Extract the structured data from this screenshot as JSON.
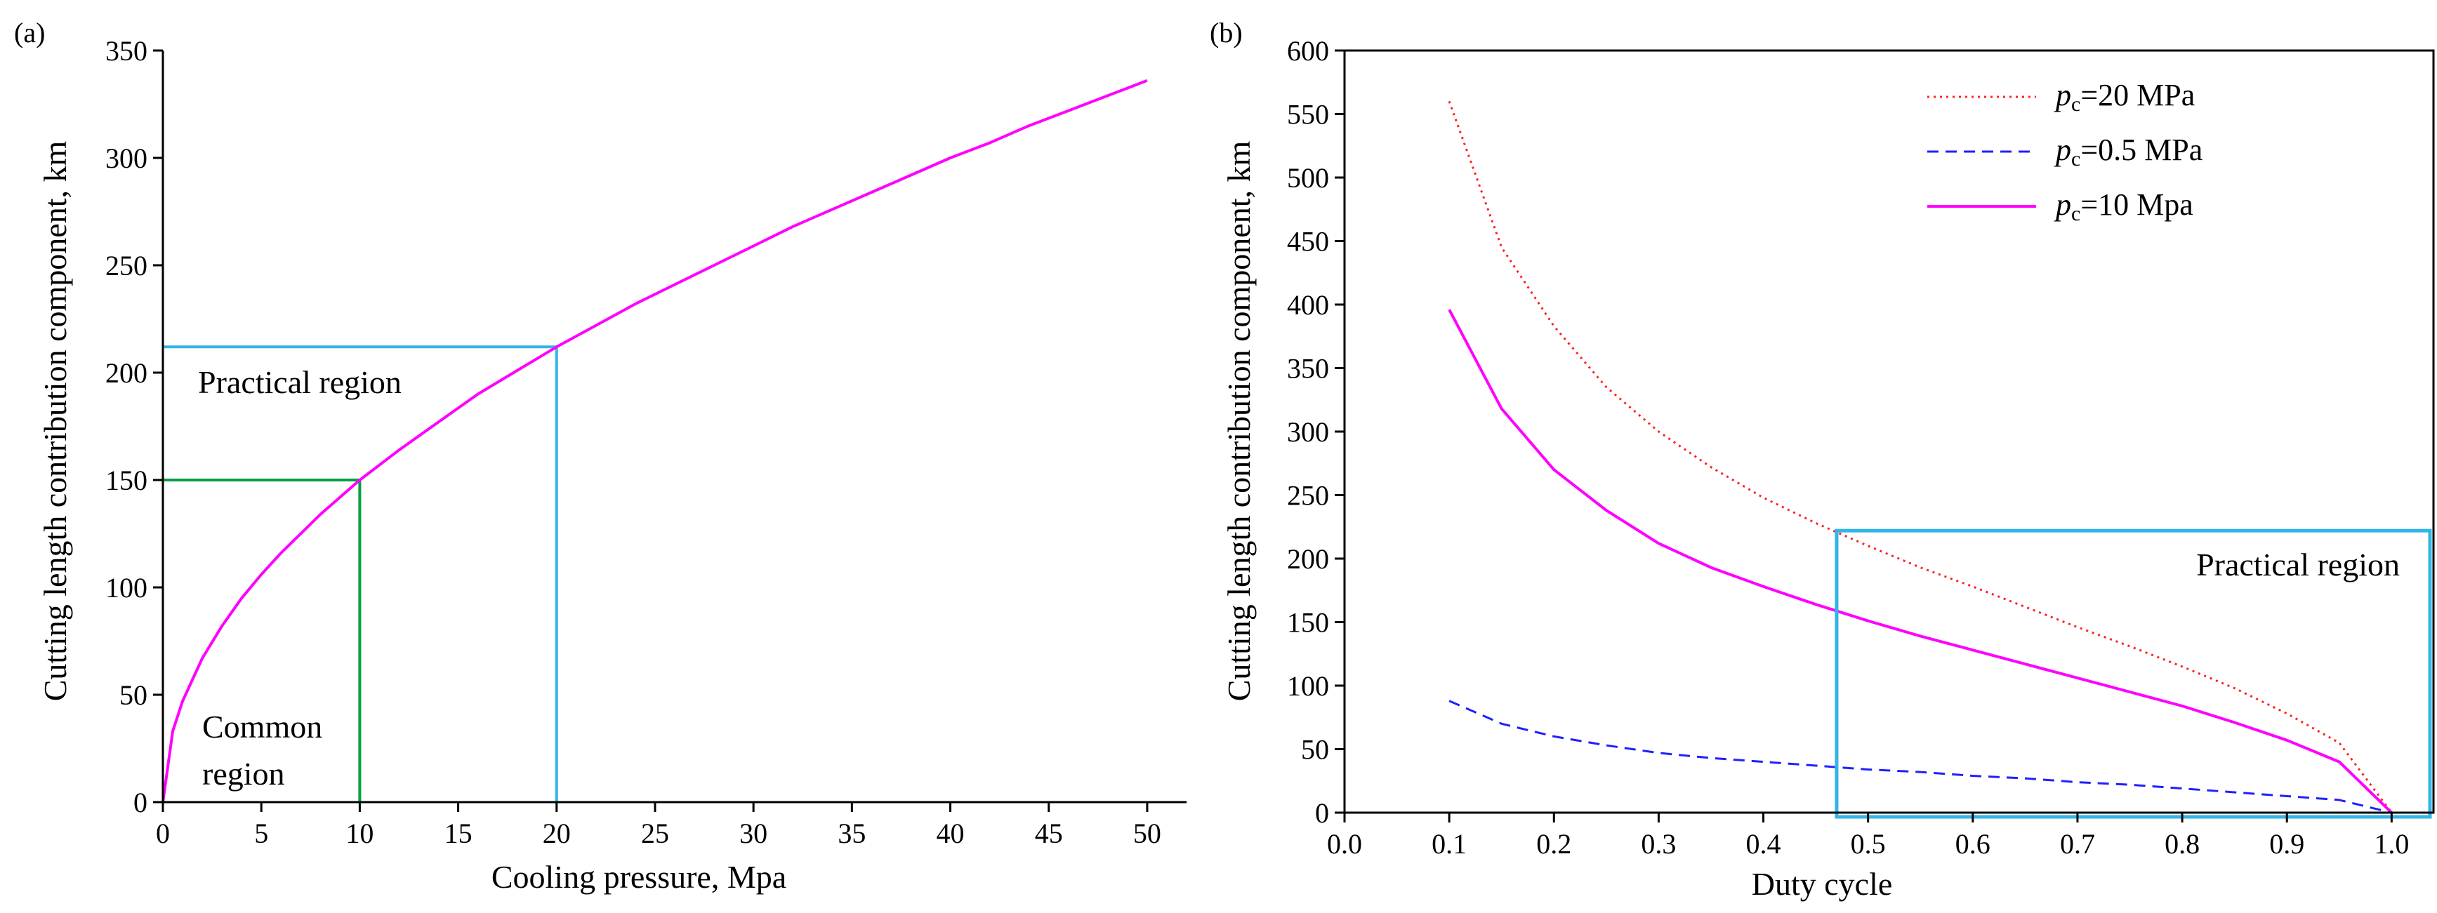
{
  "chart_data": [
    {
      "panel_label": "(a)",
      "type": "line",
      "xlabel": "Cooling pressure, Mpa",
      "ylabel": "Cutting length contribution component, km",
      "xlim": [
        0,
        52
      ],
      "ylim": [
        0,
        350
      ],
      "xticks": [
        0,
        5,
        10,
        15,
        20,
        25,
        30,
        35,
        40,
        45,
        50
      ],
      "yticks": [
        0,
        50,
        100,
        150,
        200,
        250,
        300,
        350
      ],
      "series": [
        {
          "name": "curve",
          "color": "#ff00ff",
          "style": "solid",
          "x": [
            0,
            0.5,
            1,
            2,
            3,
            4,
            5,
            6,
            7,
            8,
            9,
            10,
            12,
            14,
            16,
            18,
            20,
            22,
            24,
            26,
            28,
            30,
            32,
            34,
            36,
            38,
            40,
            42,
            44,
            46,
            48,
            50
          ],
          "y": [
            0,
            33,
            47,
            67,
            82,
            95,
            106,
            116,
            125,
            134,
            142,
            150,
            164,
            177,
            190,
            201,
            212,
            222,
            232,
            241,
            250,
            259,
            268,
            276,
            284,
            292,
            300,
            307,
            315,
            322,
            329,
            336
          ]
        }
      ],
      "regions": [
        {
          "name": "common-region",
          "label_lines": [
            "Common",
            "region"
          ],
          "color": "#00a040",
          "x": 10,
          "y": 150
        },
        {
          "name": "practical-region",
          "label_lines": [
            "Practical region"
          ],
          "color": "#33b5e5",
          "x": 20,
          "y": 212
        }
      ]
    },
    {
      "panel_label": "(b)",
      "type": "line",
      "xlabel": "Duty cycle",
      "ylabel": "Cutting length contribution component, km",
      "xlim": [
        0.0,
        1.04
      ],
      "ylim": [
        0,
        600
      ],
      "xticks": [
        0.0,
        0.1,
        0.2,
        0.3,
        0.4,
        0.5,
        0.6,
        0.7,
        0.8,
        0.9,
        1.0
      ],
      "xtick_labels": [
        "0.0",
        "0.1",
        "0.2",
        "0.3",
        "0.4",
        "0.5",
        "0.6",
        "0.7",
        "0.8",
        "0.9",
        "1.0"
      ],
      "yticks": [
        0,
        50,
        100,
        150,
        200,
        250,
        300,
        350,
        400,
        450,
        500,
        550,
        600
      ],
      "series": [
        {
          "name": "=20 MPa",
          "color": "#ff2020",
          "style": "dotted",
          "x": [
            0.1,
            0.15,
            0.2,
            0.25,
            0.3,
            0.35,
            0.4,
            0.45,
            0.5,
            0.55,
            0.6,
            0.65,
            0.7,
            0.75,
            0.8,
            0.85,
            0.9,
            0.95,
            1.0
          ],
          "y": [
            560,
            445,
            383,
            335,
            300,
            272,
            248,
            228,
            210,
            193,
            178,
            162,
            146,
            131,
            115,
            98,
            78,
            55,
            0
          ]
        },
        {
          "name": "=0.5 MPa",
          "color": "#2020ff",
          "style": "dashed",
          "x": [
            0.1,
            0.15,
            0.2,
            0.25,
            0.3,
            0.35,
            0.4,
            0.45,
            0.5,
            0.55,
            0.6,
            0.65,
            0.7,
            0.75,
            0.8,
            0.85,
            0.9,
            0.95,
            1.0
          ],
          "y": [
            88,
            70,
            60,
            53,
            47,
            43,
            40,
            37,
            34,
            32,
            29,
            27,
            24,
            22,
            19,
            16,
            13,
            10,
            0
          ]
        },
        {
          "name": "=10 Mpa",
          "color": "#ff00ff",
          "style": "solid",
          "x": [
            0.1,
            0.15,
            0.2,
            0.25,
            0.3,
            0.35,
            0.4,
            0.45,
            0.5,
            0.55,
            0.6,
            0.65,
            0.7,
            0.75,
            0.8,
            0.85,
            0.9,
            0.95,
            1.0
          ],
          "y": [
            396,
            318,
            270,
            238,
            212,
            193,
            178,
            164,
            151,
            139,
            128,
            117,
            106,
            95,
            84,
            71,
            57,
            40,
            0
          ]
        }
      ],
      "legend": {
        "prefix": "p",
        "subscript": "c"
      },
      "practical_region": {
        "label": "Practical region",
        "color": "#33b5e5",
        "x_start": 0.47,
        "y_top": 222
      }
    }
  ]
}
